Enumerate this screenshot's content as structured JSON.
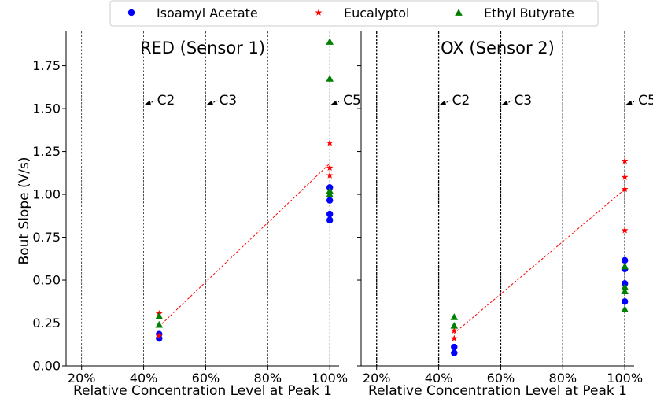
{
  "legend": {
    "placement": "top-center",
    "entries": [
      {
        "label": "Isoamyl Acetate",
        "marker": "circle",
        "color": "#0000ff"
      },
      {
        "label": "Eucalyptol",
        "marker": "star",
        "color": "#ff0000"
      },
      {
        "label": "Ethyl Butyrate",
        "marker": "triangle",
        "color": "#008000"
      }
    ]
  },
  "ylabel": "Bout Slope (V/s)",
  "chart_data": [
    {
      "type": "scatter",
      "title": "RED (Sensor 1)",
      "xlabel": "Relative Concentration Level at Peak 1",
      "ylabel": "Bout Slope (V/s)",
      "xlim": [
        15,
        103
      ],
      "ylim": [
        0,
        1.95
      ],
      "x_ticks": [
        20,
        40,
        60,
        80,
        100
      ],
      "x_tick_labels": [
        "20%",
        "40%",
        "60%",
        "80%",
        "100%"
      ],
      "y_ticks": [
        0,
        0.25,
        0.5,
        0.75,
        1.0,
        1.25,
        1.5,
        1.75
      ],
      "y_tick_labels": [
        "0.00",
        "0.25",
        "0.50",
        "0.75",
        "1.00",
        "1.25",
        "1.50",
        "1.75"
      ],
      "y_tick_labels_visible": true,
      "vlines": [
        20,
        40,
        60,
        80,
        100
      ],
      "vline_style": "thin",
      "annotations": [
        {
          "text": "C2",
          "x": 40,
          "y": 1.5
        },
        {
          "text": "C3",
          "x": 60,
          "y": 1.5
        },
        {
          "text": "C5",
          "x": 100,
          "y": 1.5
        }
      ],
      "series": [
        {
          "name": "Isoamyl Acetate",
          "marker": "circle",
          "color": "#0000ff",
          "points": [
            [
              45,
              0.185
            ],
            [
              45,
              0.16
            ],
            [
              100,
              1.04
            ],
            [
              100,
              0.965
            ],
            [
              100,
              0.885
            ],
            [
              100,
              0.85
            ]
          ]
        },
        {
          "name": "Eucalyptol",
          "marker": "star",
          "color": "#ff0000",
          "points": [
            [
              45,
              0.305
            ],
            [
              45,
              0.175
            ],
            [
              100,
              1.3
            ],
            [
              100,
              1.155
            ],
            [
              100,
              1.11
            ],
            [
              100,
              1.005
            ]
          ]
        },
        {
          "name": "Ethyl Butyrate",
          "marker": "triangle",
          "color": "#008000",
          "points": [
            [
              45,
              0.29
            ],
            [
              45,
              0.24
            ],
            [
              100,
              1.89
            ],
            [
              100,
              1.675
            ],
            [
              100,
              1.02
            ],
            [
              100,
              1.0
            ]
          ]
        }
      ],
      "trend_line": {
        "color": "#ff0000",
        "style": "dashed",
        "points": [
          [
            45,
            0.23
          ],
          [
            100,
            1.18
          ]
        ]
      }
    },
    {
      "type": "scatter",
      "title": "OX (Sensor 2)",
      "xlabel": "Relative Concentration Level at Peak 1",
      "ylabel": "",
      "xlim": [
        15,
        103
      ],
      "ylim": [
        0,
        1.95
      ],
      "x_ticks": [
        20,
        40,
        60,
        80,
        100
      ],
      "x_tick_labels": [
        "20%",
        "40%",
        "60%",
        "80%",
        "100%"
      ],
      "y_ticks": [
        0,
        0.25,
        0.5,
        0.75,
        1.0,
        1.25,
        1.5,
        1.75
      ],
      "y_tick_labels": [],
      "y_tick_labels_visible": false,
      "vlines": [
        20,
        40,
        60,
        80,
        100
      ],
      "vline_style": "bold",
      "annotations": [
        {
          "text": "C2",
          "x": 40,
          "y": 1.5
        },
        {
          "text": "C3",
          "x": 60,
          "y": 1.5
        },
        {
          "text": "C5",
          "x": 100,
          "y": 1.5
        }
      ],
      "series": [
        {
          "name": "Isoamyl Acetate",
          "marker": "circle",
          "color": "#0000ff",
          "points": [
            [
              45,
              0.11
            ],
            [
              45,
              0.075
            ],
            [
              100,
              0.615
            ],
            [
              100,
              0.565
            ],
            [
              100,
              0.48
            ],
            [
              100,
              0.375
            ]
          ]
        },
        {
          "name": "Eucalyptol",
          "marker": "star",
          "color": "#ff0000",
          "points": [
            [
              45,
              0.205
            ],
            [
              45,
              0.16
            ],
            [
              100,
              1.195
            ],
            [
              100,
              1.1
            ],
            [
              100,
              1.03
            ],
            [
              100,
              0.79
            ]
          ]
        },
        {
          "name": "Ethyl Butyrate",
          "marker": "triangle",
          "color": "#008000",
          "points": [
            [
              45,
              0.285
            ],
            [
              45,
              0.235
            ],
            [
              100,
              0.58
            ],
            [
              100,
              0.46
            ],
            [
              100,
              0.435
            ],
            [
              100,
              0.33
            ]
          ]
        }
      ],
      "trend_line": {
        "color": "#ff0000",
        "style": "dashed",
        "points": [
          [
            45,
            0.19
          ],
          [
            100,
            1.03
          ]
        ]
      }
    }
  ]
}
